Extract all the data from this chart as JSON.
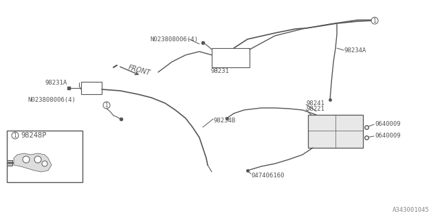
{
  "bg_color": "#ffffff",
  "line_color": "#555555",
  "text_color": "#555555",
  "part_number": "A343001045",
  "labels": {
    "N023808006_top": "N023808006(4)",
    "98231_top": "98231",
    "98234A": "98234A",
    "98231A": "98231A",
    "N023808006_bot": "N023808006(4)",
    "98234B": "98234B",
    "98241": "98241",
    "98221": "98221",
    "0640009_top": "0640009",
    "0640009_bot": "0640009",
    "047406160": "047406160",
    "98248P": "98248P",
    "FRONT": "FRONT"
  },
  "font_size_label": 6.5,
  "font_size_part": 7.5
}
